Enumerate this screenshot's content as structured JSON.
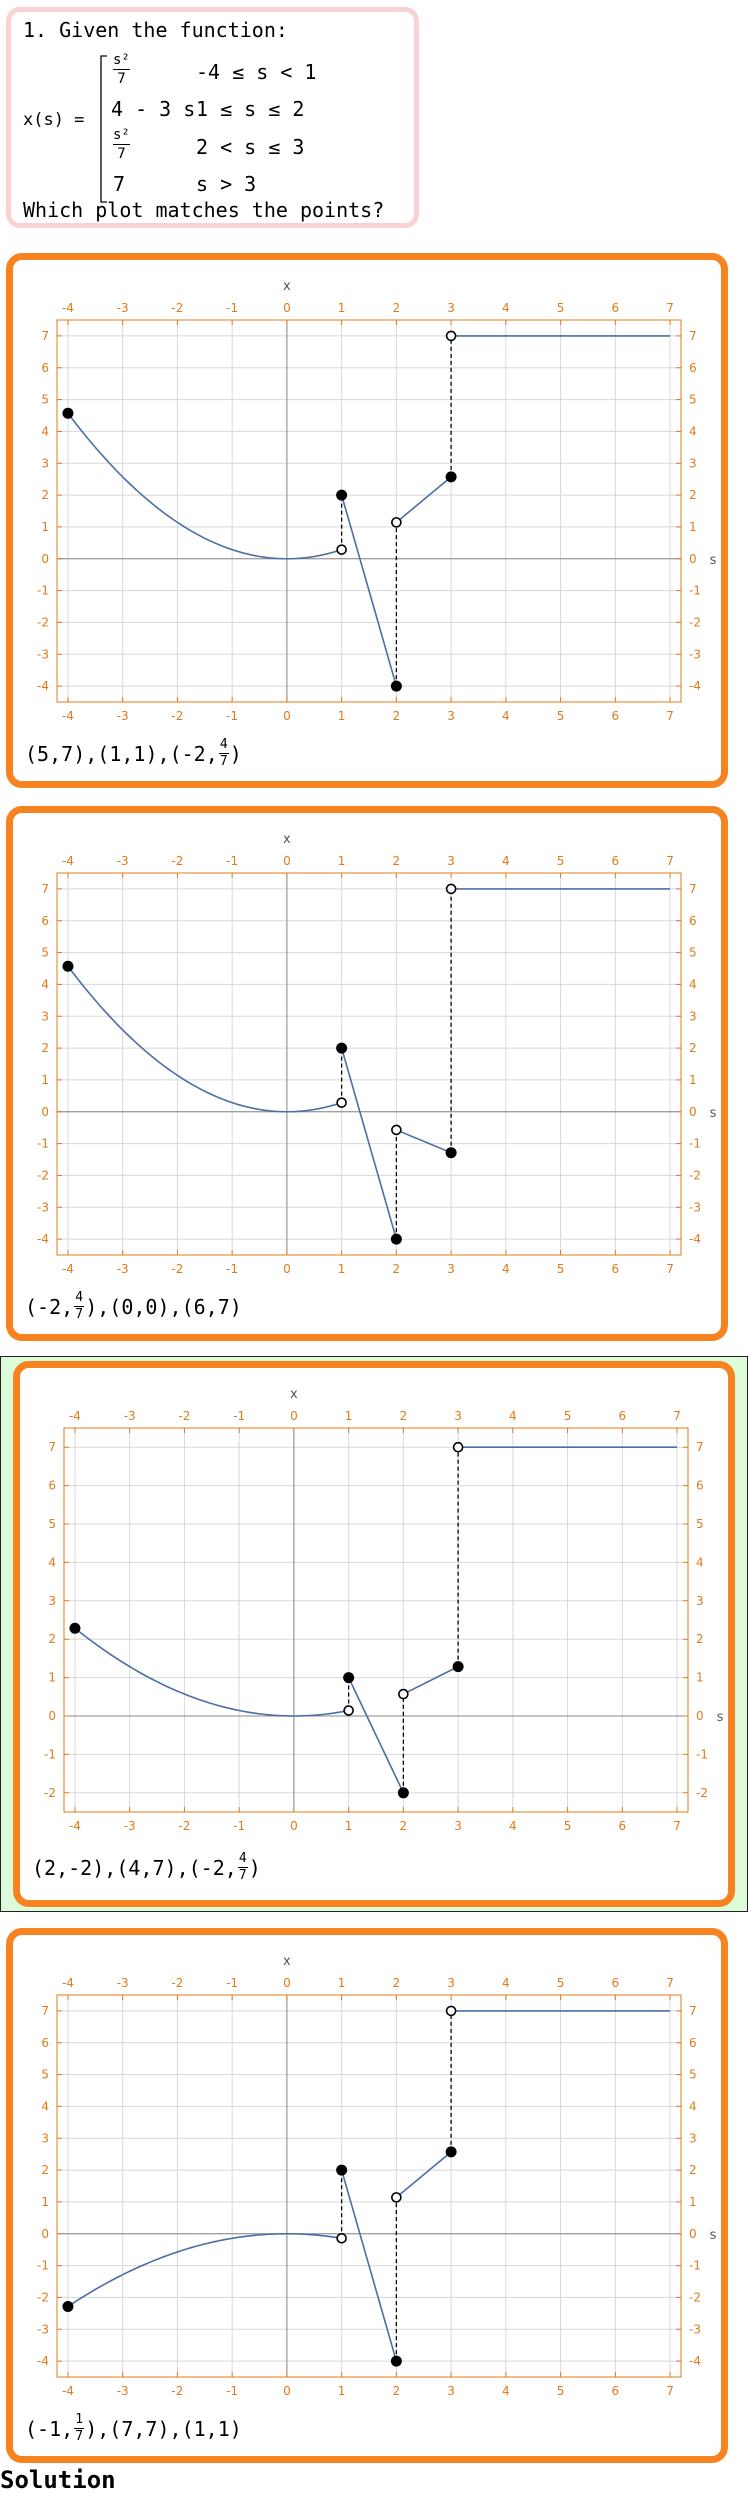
{
  "question": {
    "title": "1. Given the function:",
    "fn_label": "x(s) =",
    "pieces": [
      {
        "expr_num": "s²",
        "expr_den": "7",
        "cond": "-4 ≤ s < 1"
      },
      {
        "expr": "4 - 3 s",
        "cond": "1 ≤ s ≤ 2"
      },
      {
        "expr_num": "s²",
        "expr_den": "7",
        "cond": "2 < s ≤ 3"
      },
      {
        "expr": "7",
        "cond": "s > 3"
      }
    ],
    "prompt": "Which plot matches the points?"
  },
  "axes": {
    "x_label": "x",
    "s_label": "s",
    "x_ticks": [
      "-4",
      "-3",
      "-2",
      "-1",
      "0",
      "1",
      "2",
      "3",
      "4",
      "5",
      "6",
      "7"
    ]
  },
  "options": [
    {
      "correct": false,
      "y_ticks": [
        "7",
        "6",
        "5",
        "4",
        "3",
        "2",
        "1",
        "0",
        "-1",
        "-2",
        "-3",
        "-4"
      ],
      "ylim": [
        -4.5,
        7.5
      ],
      "caption": [
        {
          "pt": [
            "5",
            "7"
          ]
        },
        {
          "pt": [
            "1",
            "1"
          ]
        },
        {
          "pt": [
            "-2",
            {
              "num": "4",
              "den": "7"
            }
          ]
        }
      ],
      "chart_data": {
        "type": "line",
        "curve": "s2_over_7_positive",
        "segments": [
          {
            "kind": "curve",
            "from": -4,
            "to": 1,
            "start_value": 4.571,
            "end_value": 0.286
          },
          {
            "kind": "line",
            "points": [
              [
                1,
                2
              ],
              [
                2,
                -4
              ]
            ]
          },
          {
            "kind": "line",
            "points": [
              [
                2,
                1.143
              ],
              [
                3,
                2.571
              ]
            ]
          },
          {
            "kind": "line",
            "points": [
              [
                3,
                7
              ],
              [
                7,
                7
              ]
            ]
          }
        ],
        "filled_points": [
          [
            -4,
            4.571
          ],
          [
            1,
            2
          ],
          [
            2,
            -4
          ],
          [
            3,
            2.571
          ]
        ],
        "open_points": [
          [
            1,
            0.286
          ],
          [
            2,
            1.143
          ],
          [
            3,
            7
          ]
        ],
        "dashed": [
          [
            1,
            0.286,
            2
          ],
          [
            2,
            -4,
            1.143
          ],
          [
            3,
            2.571,
            7
          ]
        ]
      }
    },
    {
      "correct": false,
      "y_ticks": [
        "7",
        "6",
        "5",
        "4",
        "3",
        "2",
        "1",
        "0",
        "-1",
        "-2",
        "-3",
        "-4"
      ],
      "ylim": [
        -4.5,
        7.5
      ],
      "caption": [
        {
          "pt": [
            "-2",
            {
              "num": "4",
              "den": "7"
            }
          ]
        },
        {
          "pt": [
            "0",
            "0"
          ]
        },
        {
          "pt": [
            "6",
            "7"
          ]
        }
      ],
      "chart_data": {
        "type": "line",
        "segments": [
          {
            "kind": "curve",
            "from": -4,
            "to": 1,
            "start_value": 4.571,
            "end_value": 0.286
          },
          {
            "kind": "line",
            "points": [
              [
                1,
                2
              ],
              [
                2,
                -4
              ]
            ]
          },
          {
            "kind": "line",
            "points": [
              [
                2,
                -0.571
              ],
              [
                3,
                -1.286
              ]
            ]
          },
          {
            "kind": "line",
            "points": [
              [
                3,
                7
              ],
              [
                7,
                7
              ]
            ]
          }
        ],
        "filled_points": [
          [
            -4,
            4.571
          ],
          [
            1,
            2
          ],
          [
            2,
            -4
          ],
          [
            3,
            -1.286
          ]
        ],
        "open_points": [
          [
            1,
            0.286
          ],
          [
            2,
            -0.571
          ],
          [
            3,
            7
          ]
        ],
        "dashed": [
          [
            1,
            0.286,
            2
          ],
          [
            2,
            -4,
            -0.571
          ],
          [
            3,
            -1.286,
            7
          ]
        ]
      }
    },
    {
      "correct": true,
      "y_ticks": [
        "7",
        "6",
        "5",
        "4",
        "3",
        "2",
        "1",
        "0",
        "-1",
        "-2"
      ],
      "ylim": [
        -2.5,
        7.5
      ],
      "caption": [
        {
          "pt": [
            "2",
            "-2"
          ]
        },
        {
          "pt": [
            "4",
            "7"
          ]
        },
        {
          "pt": [
            "-2",
            {
              "num": "4",
              "den": "7"
            }
          ]
        }
      ],
      "chart_data": {
        "type": "line",
        "segments": [
          {
            "kind": "curve",
            "from": -4,
            "to": 1,
            "start_value": 2.286,
            "end_value": 0.143
          },
          {
            "kind": "line",
            "points": [
              [
                1,
                1
              ],
              [
                2,
                -2
              ]
            ]
          },
          {
            "kind": "line",
            "points": [
              [
                2,
                0.571
              ],
              [
                3,
                1.286
              ]
            ]
          },
          {
            "kind": "line",
            "points": [
              [
                3,
                7
              ],
              [
                7,
                7
              ]
            ]
          }
        ],
        "filled_points": [
          [
            -4,
            2.286
          ],
          [
            1,
            1
          ],
          [
            2,
            -2
          ],
          [
            3,
            1.286
          ]
        ],
        "open_points": [
          [
            1,
            0.143
          ],
          [
            2,
            0.571
          ],
          [
            3,
            7
          ]
        ],
        "dashed": [
          [
            1,
            0.143,
            1
          ],
          [
            2,
            -2,
            0.571
          ],
          [
            3,
            1.286,
            7
          ]
        ]
      }
    },
    {
      "correct": false,
      "y_ticks": [
        "7",
        "6",
        "5",
        "4",
        "3",
        "2",
        "1",
        "0",
        "-1",
        "-2",
        "-3",
        "-4"
      ],
      "ylim": [
        -4.5,
        7.5
      ],
      "caption": [
        {
          "pt": [
            "-1",
            {
              "num": "1",
              "den": "7"
            }
          ]
        },
        {
          "pt": [
            "7",
            "7"
          ]
        },
        {
          "pt": [
            "1",
            "1"
          ]
        }
      ],
      "chart_data": {
        "type": "line",
        "segments": [
          {
            "kind": "curve",
            "from": -4,
            "to": 1,
            "start_value": -2.286,
            "end_value": -0.143,
            "negative": true
          },
          {
            "kind": "line",
            "points": [
              [
                1,
                2
              ],
              [
                2,
                -4
              ]
            ]
          },
          {
            "kind": "line",
            "points": [
              [
                2,
                1.143
              ],
              [
                3,
                2.571
              ]
            ]
          },
          {
            "kind": "line",
            "points": [
              [
                3,
                7
              ],
              [
                7,
                7
              ]
            ]
          }
        ],
        "filled_points": [
          [
            -4,
            -2.286
          ],
          [
            1,
            2
          ],
          [
            2,
            -4
          ],
          [
            3,
            2.571
          ]
        ],
        "open_points": [
          [
            1,
            -0.143
          ],
          [
            2,
            1.143
          ],
          [
            3,
            7
          ]
        ],
        "dashed": [
          [
            1,
            -0.143,
            2
          ],
          [
            2,
            -4,
            1.143
          ],
          [
            3,
            2.571,
            7
          ]
        ]
      }
    }
  ],
  "solution_label": "Solution",
  "colors": {
    "accent": "#f6831f",
    "curve": "#4a6fa5",
    "correct_bg": "#dcfbd9",
    "question_border": "#f9d3d3",
    "tick": "#e07b1a"
  }
}
